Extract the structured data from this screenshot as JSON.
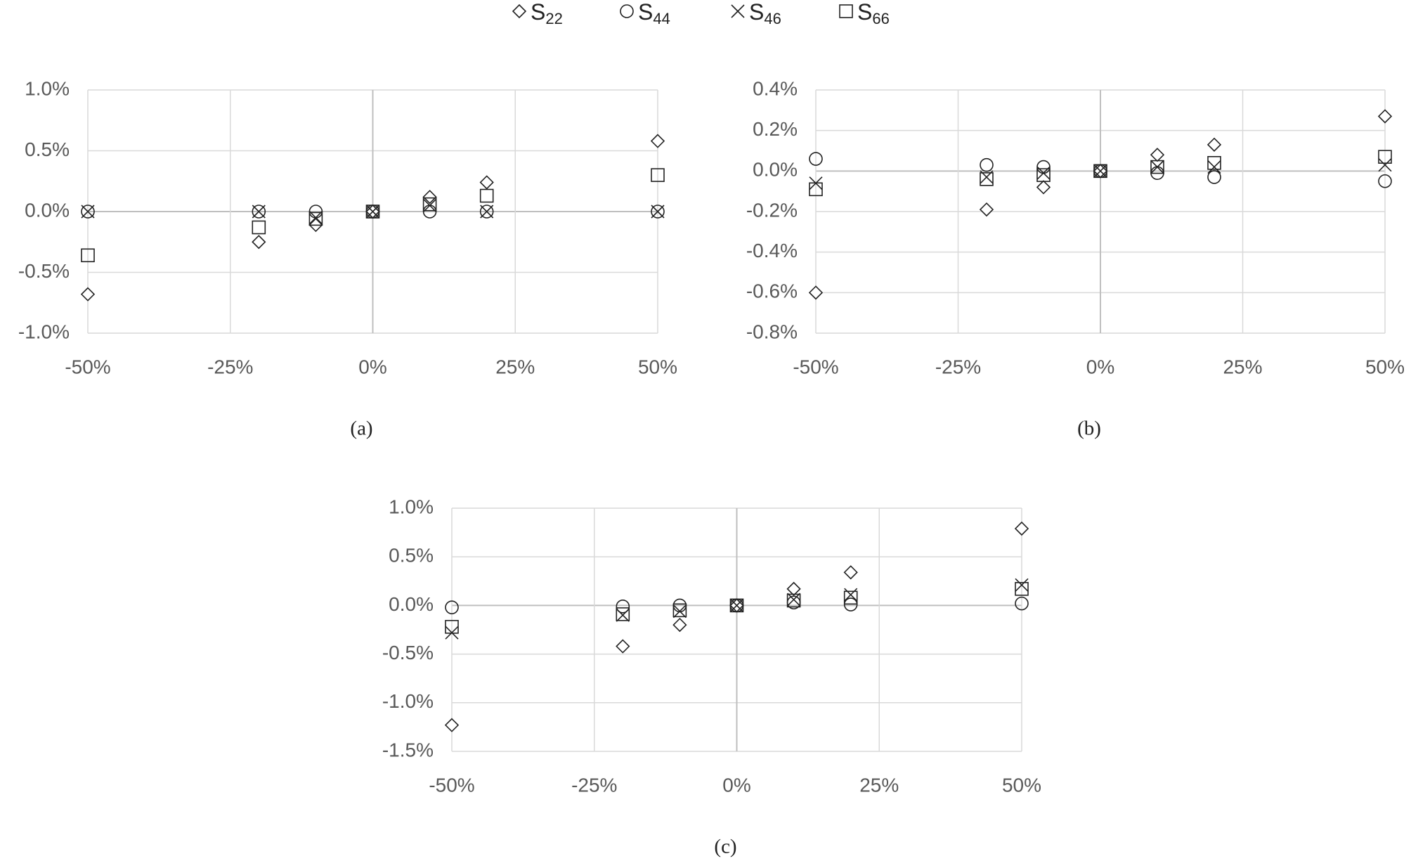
{
  "chart_data": [
    {
      "type": "scatter",
      "caption": "(a)",
      "x": [
        -50,
        -20,
        -10,
        0,
        10,
        20,
        50
      ],
      "series": [
        {
          "name": "S22",
          "marker": "diamond",
          "values": [
            -0.68,
            -0.25,
            -0.11,
            0,
            0.12,
            0.24,
            0.58
          ]
        },
        {
          "name": "S44",
          "marker": "circle",
          "values": [
            0,
            0,
            0,
            0,
            0,
            0,
            0
          ]
        },
        {
          "name": "S46",
          "marker": "x",
          "values": [
            0,
            0,
            -0.05,
            0,
            0.05,
            0,
            0
          ]
        },
        {
          "name": "S66",
          "marker": "square",
          "values": [
            -0.36,
            -0.13,
            -0.06,
            0,
            0.06,
            0.13,
            0.3
          ]
        }
      ],
      "xlim": [
        -50,
        50
      ],
      "xticks": [
        {
          "value": -50,
          "label": "-50%"
        },
        {
          "value": -25,
          "label": "-25%"
        },
        {
          "value": 0,
          "label": "0%"
        },
        {
          "value": 25,
          "label": "25%"
        },
        {
          "value": 50,
          "label": "50%"
        }
      ],
      "ylim": [
        -1.0,
        1.0
      ],
      "yticks": [
        {
          "value": -1.0,
          "label": "-1.0%"
        },
        {
          "value": -0.5,
          "label": "-0.5%"
        },
        {
          "value": 0,
          "label": "0.0%"
        },
        {
          "value": 0.5,
          "label": "0.5%"
        },
        {
          "value": 1.0,
          "label": "1.0%"
        }
      ],
      "grid": true
    },
    {
      "type": "scatter",
      "caption": "(b)",
      "x": [
        -50,
        -20,
        -10,
        0,
        10,
        20,
        50
      ],
      "series": [
        {
          "marker": "diamond",
          "values": [
            -0.6,
            -0.19,
            -0.08,
            0,
            0.08,
            0.13,
            0.27
          ]
        },
        {
          "marker": "circle",
          "values": [
            0.06,
            0.03,
            0.02,
            0,
            -0.01,
            -0.03,
            -0.05
          ]
        },
        {
          "marker": "x",
          "values": [
            -0.06,
            -0.03,
            -0.01,
            0,
            0.02,
            0.02,
            0.03
          ]
        },
        {
          "marker": "square",
          "values": [
            -0.09,
            -0.04,
            -0.02,
            0,
            0.02,
            0.04,
            0.07
          ]
        }
      ],
      "xlim": [
        -50,
        50
      ],
      "xticks": [
        {
          "value": -50,
          "label": "-50%"
        },
        {
          "value": -25,
          "label": "-25%"
        },
        {
          "value": 0,
          "label": "0%"
        },
        {
          "value": 25,
          "label": "25%"
        },
        {
          "value": 50,
          "label": "50%"
        }
      ],
      "ylim": [
        -0.8,
        0.4
      ],
      "yticks": [
        {
          "value": -0.8,
          "label": "-0.8%"
        },
        {
          "value": -0.6,
          "label": "-0.6%"
        },
        {
          "value": -0.4,
          "label": "-0.4%"
        },
        {
          "value": -0.2,
          "label": "-0.2%"
        },
        {
          "value": 0,
          "label": "0.0%"
        },
        {
          "value": 0.2,
          "label": "0.2%"
        },
        {
          "value": 0.4,
          "label": "0.4%"
        }
      ],
      "grid": true
    },
    {
      "type": "scatter",
      "caption": "(c)",
      "x": [
        -50,
        -20,
        -10,
        0,
        10,
        20,
        50
      ],
      "series": [
        {
          "marker": "diamond",
          "values": [
            -1.23,
            -0.42,
            -0.2,
            0,
            0.17,
            0.34,
            0.79
          ]
        },
        {
          "marker": "circle",
          "values": [
            -0.02,
            -0.01,
            0,
            0,
            0.03,
            0.01,
            0.02
          ]
        },
        {
          "marker": "x",
          "values": [
            -0.28,
            -0.1,
            -0.06,
            0,
            0.06,
            0.11,
            0.21
          ]
        },
        {
          "marker": "square",
          "values": [
            -0.22,
            -0.09,
            -0.05,
            0,
            0.05,
            0.08,
            0.17
          ]
        }
      ],
      "xlim": [
        -50,
        50
      ],
      "xticks": [
        {
          "value": -50,
          "label": "-50%"
        },
        {
          "value": -25,
          "label": "-25%"
        },
        {
          "value": 0,
          "label": "0%"
        },
        {
          "value": 25,
          "label": "25%"
        },
        {
          "value": 50,
          "label": "50%"
        }
      ],
      "ylim": [
        -1.5,
        1.0
      ],
      "yticks": [
        {
          "value": -1.5,
          "label": "-1.5%"
        },
        {
          "value": -1.0,
          "label": "-1.0%"
        },
        {
          "value": -0.5,
          "label": "-0.5%"
        },
        {
          "value": 0,
          "label": "0.0%"
        },
        {
          "value": 0.5,
          "label": "0.5%"
        },
        {
          "value": 1.0,
          "label": "1.0%"
        }
      ],
      "grid": true
    }
  ]
}
